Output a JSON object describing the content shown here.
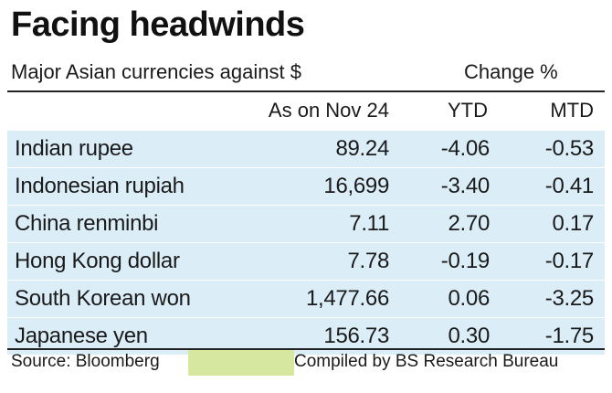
{
  "title": "Facing headwinds",
  "subtitle": "Major Asian currencies against $",
  "change_label": "Change %",
  "columns": {
    "as_of": "As on Nov 24",
    "ytd": "YTD",
    "mtd": "MTD"
  },
  "rows": [
    {
      "name": "Indian rupee",
      "value": "89.24",
      "ytd": "-4.06",
      "mtd": "-0.53"
    },
    {
      "name": "Indonesian rupiah",
      "value": "16,699",
      "ytd": "-3.40",
      "mtd": "-0.41"
    },
    {
      "name": "China renminbi",
      "value": "7.11",
      "ytd": "2.70",
      "mtd": "0.17"
    },
    {
      "name": "Hong Kong dollar",
      "value": "7.78",
      "ytd": "-0.19",
      "mtd": "-0.17"
    },
    {
      "name": "South Korean won",
      "value": "1,477.66",
      "ytd": "0.06",
      "mtd": "-3.25"
    },
    {
      "name": "Japanese yen",
      "value": "156.73",
      "ytd": "0.30",
      "mtd": "-1.75"
    }
  ],
  "footer": {
    "source": "Source: Bloomberg",
    "compiled": "Compiled by BS Research Bureau"
  },
  "colors": {
    "row_shade": "#dbeef8",
    "highlight": "#d6e8a0"
  },
  "chart_data": {
    "type": "table",
    "title": "Facing headwinds",
    "subtitle": "Major Asian currencies against $",
    "columns": [
      "",
      "As on Nov 24",
      "YTD",
      "MTD"
    ],
    "column_group": "Change %",
    "rows": [
      [
        "Indian rupee",
        89.24,
        -4.06,
        -0.53
      ],
      [
        "Indonesian rupiah",
        16699,
        -3.4,
        -0.41
      ],
      [
        "China renminbi",
        7.11,
        2.7,
        0.17
      ],
      [
        "Hong Kong dollar",
        7.78,
        -0.19,
        -0.17
      ],
      [
        "South Korean won",
        1477.66,
        0.06,
        -3.25
      ],
      [
        "Japanese yen",
        156.73,
        0.3,
        -1.75
      ]
    ]
  }
}
